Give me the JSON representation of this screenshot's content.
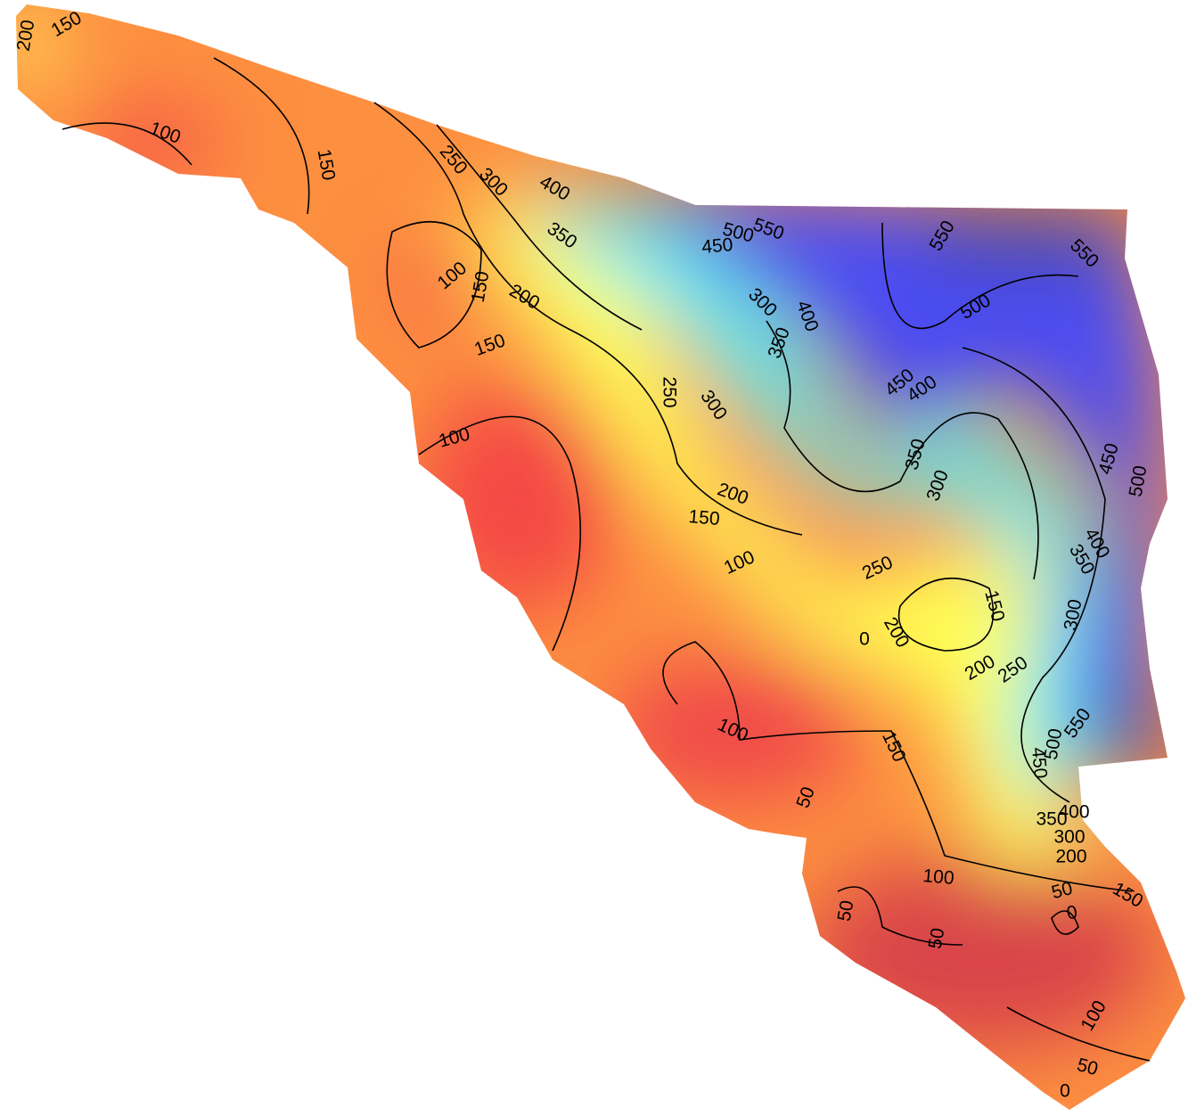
{
  "contour_labels": [
    200,
    150,
    100,
    150,
    250,
    300,
    400,
    350,
    500,
    550,
    450,
    550,
    550,
    100,
    150,
    200,
    300,
    400,
    350,
    500,
    150,
    450,
    400,
    250,
    300,
    100,
    350,
    300,
    450,
    500,
    200,
    150,
    400,
    350,
    100,
    250,
    150,
    300,
    200,
    0,
    200,
    250,
    100,
    150,
    550,
    500,
    450,
    50,
    400,
    350,
    300,
    200,
    100,
    50,
    150,
    50,
    0,
    50,
    100,
    50,
    0
  ]
}
